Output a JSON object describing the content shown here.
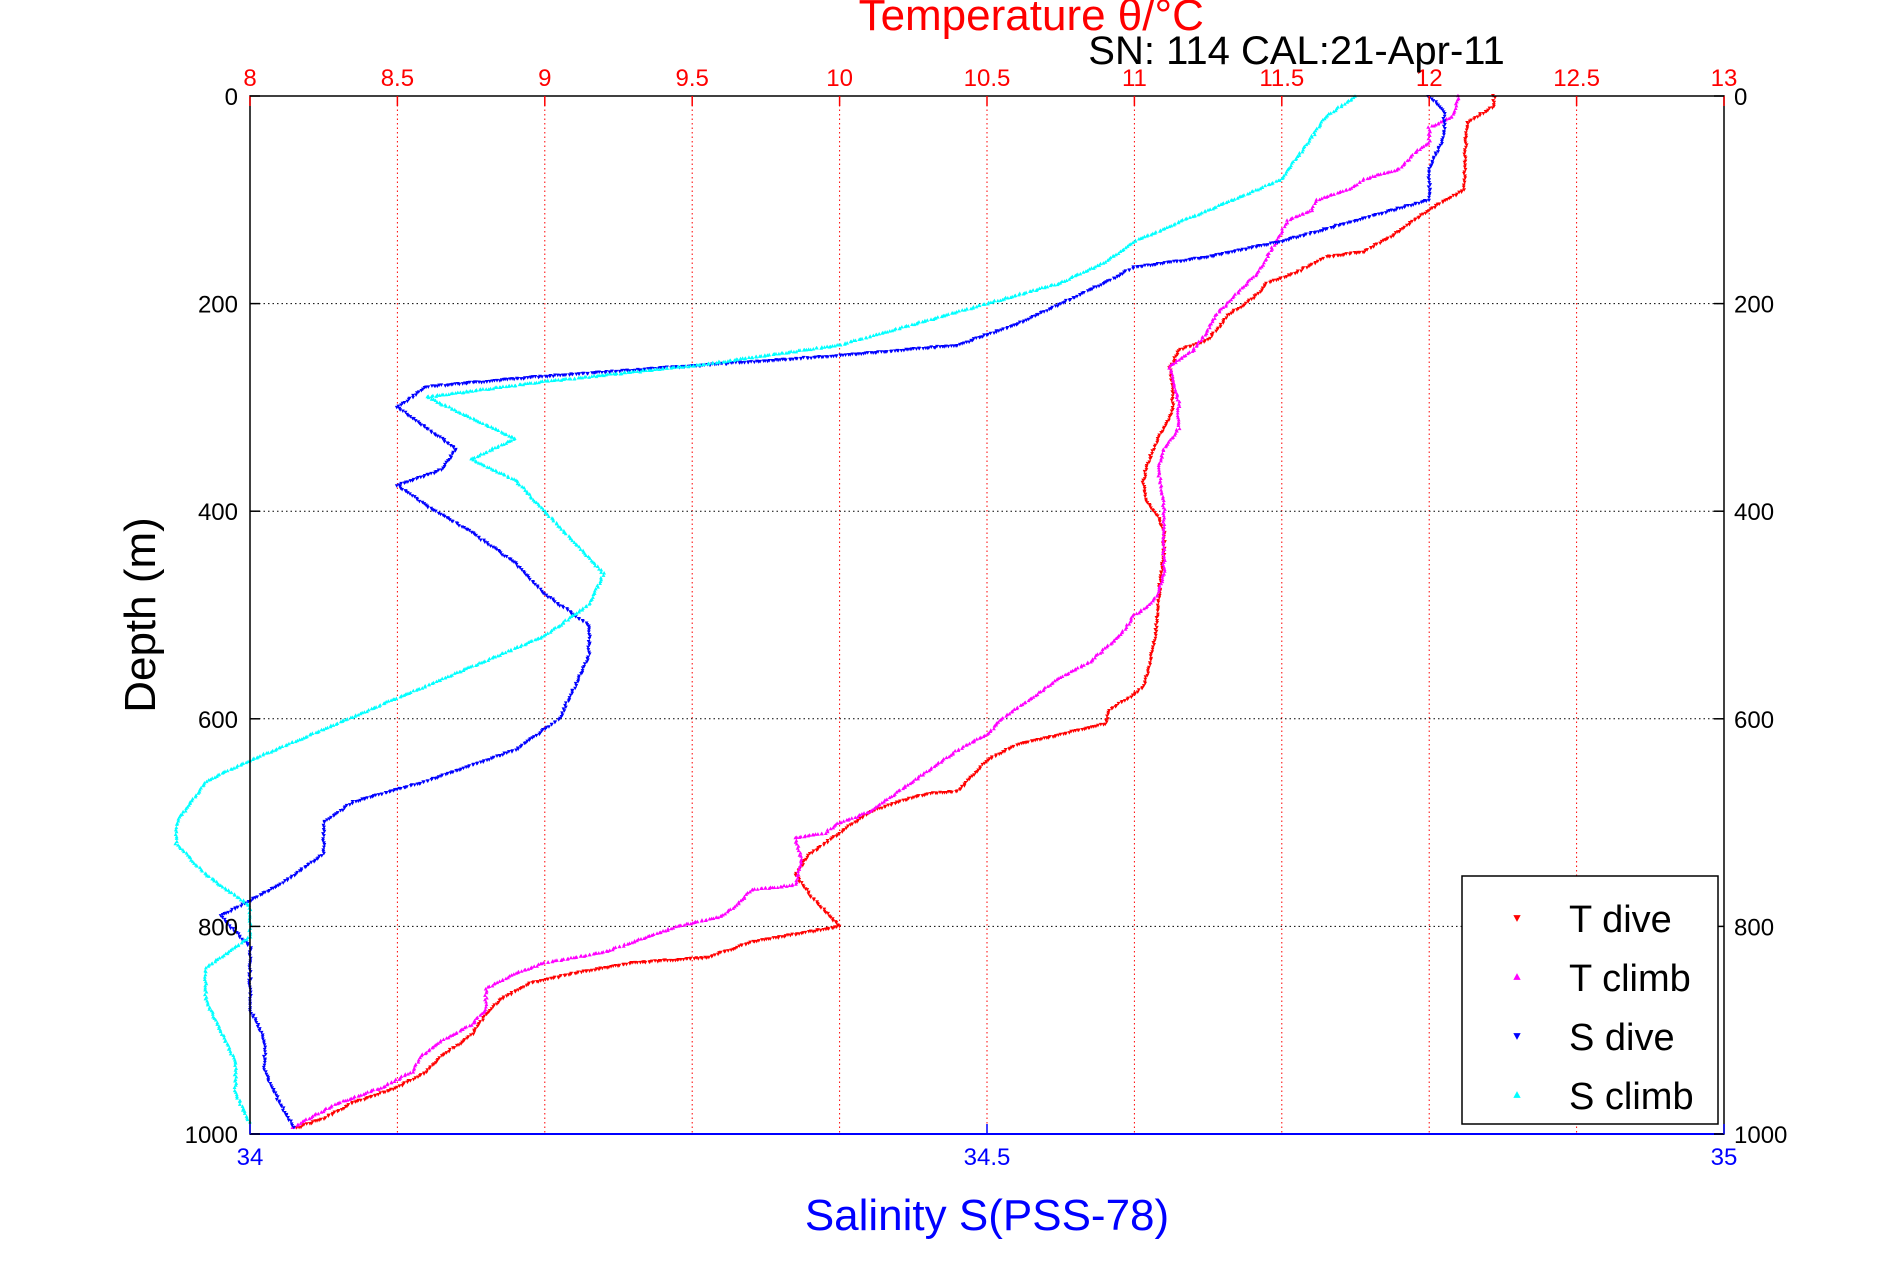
{
  "chart_data": {
    "type": "scatter",
    "title": "Temperature θ/°C",
    "subtitle": "SN: 114  CAL:21-Apr-11",
    "x_top": {
      "label": "Temperature θ/°C",
      "range": [
        8,
        13
      ],
      "ticks": [
        "8",
        "8.5",
        "9",
        "9.5",
        "10",
        "10.5",
        "11",
        "11.5",
        "12",
        "12.5",
        "13"
      ],
      "color": "#ff0000",
      "grid": true
    },
    "x_bottom": {
      "label": "Salinity S(PSS-78)",
      "range": [
        34,
        35
      ],
      "ticks": [
        "34",
        "34.5",
        "35"
      ],
      "color": "#0000ff"
    },
    "y": {
      "label": "Depth (m)",
      "range": [
        0,
        1000
      ],
      "reversed": true,
      "ticks": [
        "0",
        "200",
        "400",
        "600",
        "800",
        "1000"
      ],
      "grid": true
    },
    "legend": {
      "placement": "bottom-right",
      "entries": [
        "T dive",
        "T climb",
        "S dive",
        "S climb"
      ]
    },
    "series": [
      {
        "name": "T dive",
        "axis": "temperature",
        "color": "#ff0000",
        "points": [
          [
            12.22,
            0
          ],
          [
            12.22,
            10
          ],
          [
            12.13,
            25
          ],
          [
            12.12,
            60
          ],
          [
            12.12,
            90
          ],
          [
            12.0,
            110
          ],
          [
            11.9,
            130
          ],
          [
            11.78,
            150
          ],
          [
            11.65,
            155
          ],
          [
            11.55,
            170
          ],
          [
            11.45,
            180
          ],
          [
            11.42,
            190
          ],
          [
            11.38,
            200
          ],
          [
            11.32,
            210
          ],
          [
            11.28,
            225
          ],
          [
            11.25,
            235
          ],
          [
            11.15,
            245
          ],
          [
            11.12,
            262
          ],
          [
            11.13,
            280
          ],
          [
            11.13,
            300
          ],
          [
            11.12,
            310
          ],
          [
            11.08,
            330
          ],
          [
            11.05,
            350
          ],
          [
            11.03,
            370
          ],
          [
            11.04,
            390
          ],
          [
            11.08,
            405
          ],
          [
            11.1,
            420
          ],
          [
            11.1,
            440
          ],
          [
            11.09,
            460
          ],
          [
            11.08,
            490
          ],
          [
            11.07,
            520
          ],
          [
            11.05,
            550
          ],
          [
            11.03,
            570
          ],
          [
            10.98,
            580
          ],
          [
            10.92,
            590
          ],
          [
            10.9,
            605
          ],
          [
            10.75,
            615
          ],
          [
            10.6,
            625
          ],
          [
            10.5,
            640
          ],
          [
            10.45,
            655
          ],
          [
            10.4,
            670
          ],
          [
            10.3,
            672
          ],
          [
            10.2,
            680
          ],
          [
            10.1,
            690
          ],
          [
            10.0,
            710
          ],
          [
            9.9,
            730
          ],
          [
            9.85,
            750
          ],
          [
            9.9,
            770
          ],
          [
            9.95,
            785
          ],
          [
            10.0,
            800
          ],
          [
            9.9,
            805
          ],
          [
            9.7,
            815
          ],
          [
            9.55,
            830
          ],
          [
            9.3,
            835
          ],
          [
            9.1,
            845
          ],
          [
            8.95,
            855
          ],
          [
            8.85,
            870
          ],
          [
            8.8,
            885
          ],
          [
            8.75,
            905
          ],
          [
            8.65,
            925
          ],
          [
            8.6,
            940
          ],
          [
            8.5,
            955
          ],
          [
            8.35,
            970
          ],
          [
            8.25,
            985
          ],
          [
            8.15,
            995
          ]
        ]
      },
      {
        "name": "T climb",
        "axis": "temperature",
        "color": "#ff00ff",
        "points": [
          [
            12.1,
            0
          ],
          [
            12.08,
            20
          ],
          [
            12.0,
            30
          ],
          [
            12.0,
            45
          ],
          [
            11.95,
            55
          ],
          [
            11.9,
            70
          ],
          [
            11.78,
            80
          ],
          [
            11.73,
            90
          ],
          [
            11.62,
            100
          ],
          [
            11.6,
            110
          ],
          [
            11.52,
            120
          ],
          [
            11.5,
            130
          ],
          [
            11.48,
            140
          ],
          [
            11.45,
            155
          ],
          [
            11.42,
            170
          ],
          [
            11.35,
            190
          ],
          [
            11.28,
            210
          ],
          [
            11.25,
            225
          ],
          [
            11.2,
            245
          ],
          [
            11.12,
            260
          ],
          [
            11.13,
            275
          ],
          [
            11.15,
            295
          ],
          [
            11.15,
            320
          ],
          [
            11.1,
            340
          ],
          [
            11.08,
            360
          ],
          [
            11.1,
            390
          ],
          [
            11.1,
            430
          ],
          [
            11.1,
            460
          ],
          [
            11.08,
            480
          ],
          [
            11.05,
            490
          ],
          [
            11.0,
            500
          ],
          [
            10.95,
            520
          ],
          [
            10.85,
            545
          ],
          [
            10.75,
            560
          ],
          [
            10.65,
            580
          ],
          [
            10.55,
            600
          ],
          [
            10.5,
            615
          ],
          [
            10.4,
            630
          ],
          [
            10.3,
            650
          ],
          [
            10.2,
            670
          ],
          [
            10.1,
            690
          ],
          [
            10.0,
            700
          ],
          [
            9.95,
            710
          ],
          [
            9.85,
            715
          ],
          [
            9.87,
            735
          ],
          [
            9.85,
            760
          ],
          [
            9.7,
            765
          ],
          [
            9.65,
            780
          ],
          [
            9.6,
            790
          ],
          [
            9.45,
            800
          ],
          [
            9.3,
            815
          ],
          [
            9.2,
            825
          ],
          [
            9.0,
            835
          ],
          [
            8.9,
            845
          ],
          [
            8.8,
            860
          ],
          [
            8.8,
            880
          ],
          [
            8.75,
            895
          ],
          [
            8.65,
            910
          ],
          [
            8.58,
            925
          ],
          [
            8.55,
            940
          ],
          [
            8.45,
            955
          ],
          [
            8.3,
            970
          ],
          [
            8.2,
            985
          ],
          [
            8.14,
            995
          ]
        ]
      },
      {
        "name": "S dive",
        "axis": "salinity",
        "color": "#0000ff",
        "points": [
          [
            34.8,
            0
          ],
          [
            34.81,
            15
          ],
          [
            34.81,
            40
          ],
          [
            34.8,
            70
          ],
          [
            34.8,
            100
          ],
          [
            34.75,
            120
          ],
          [
            34.7,
            140
          ],
          [
            34.65,
            155
          ],
          [
            34.6,
            165
          ],
          [
            34.58,
            180
          ],
          [
            34.55,
            200
          ],
          [
            34.52,
            220
          ],
          [
            34.48,
            240
          ],
          [
            34.4,
            250
          ],
          [
            34.3,
            260
          ],
          [
            34.2,
            270
          ],
          [
            34.12,
            280
          ],
          [
            34.1,
            300
          ],
          [
            34.12,
            320
          ],
          [
            34.14,
            340
          ],
          [
            34.13,
            360
          ],
          [
            34.1,
            375
          ],
          [
            34.12,
            395
          ],
          [
            34.15,
            420
          ],
          [
            34.18,
            450
          ],
          [
            34.2,
            480
          ],
          [
            34.23,
            510
          ],
          [
            34.23,
            540
          ],
          [
            34.22,
            570
          ],
          [
            34.21,
            600
          ],
          [
            34.18,
            630
          ],
          [
            34.12,
            660
          ],
          [
            34.07,
            680
          ],
          [
            34.05,
            700
          ],
          [
            34.05,
            730
          ],
          [
            34.02,
            760
          ],
          [
            33.98,
            790
          ],
          [
            34.0,
            820
          ],
          [
            34.0,
            850
          ],
          [
            34.0,
            880
          ],
          [
            34.01,
            910
          ],
          [
            34.01,
            940
          ],
          [
            34.02,
            970
          ],
          [
            34.03,
            995
          ]
        ]
      },
      {
        "name": "S climb",
        "axis": "salinity",
        "color": "#00ffff",
        "points": [
          [
            34.75,
            0
          ],
          [
            34.73,
            20
          ],
          [
            34.72,
            40
          ],
          [
            34.71,
            60
          ],
          [
            34.7,
            80
          ],
          [
            34.65,
            110
          ],
          [
            34.6,
            140
          ],
          [
            34.58,
            160
          ],
          [
            34.55,
            180
          ],
          [
            34.5,
            200
          ],
          [
            34.45,
            220
          ],
          [
            34.4,
            240
          ],
          [
            34.3,
            260
          ],
          [
            34.2,
            275
          ],
          [
            34.12,
            290
          ],
          [
            34.15,
            310
          ],
          [
            34.18,
            330
          ],
          [
            34.15,
            350
          ],
          [
            34.18,
            370
          ],
          [
            34.2,
            400
          ],
          [
            34.22,
            430
          ],
          [
            34.24,
            460
          ],
          [
            34.23,
            490
          ],
          [
            34.2,
            520
          ],
          [
            34.15,
            550
          ],
          [
            34.1,
            580
          ],
          [
            34.05,
            610
          ],
          [
            34.0,
            640
          ],
          [
            33.97,
            660
          ],
          [
            33.96,
            680
          ],
          [
            33.95,
            700
          ],
          [
            33.95,
            720
          ],
          [
            33.97,
            750
          ],
          [
            34.0,
            780
          ],
          [
            34.0,
            810
          ],
          [
            33.97,
            840
          ],
          [
            33.97,
            870
          ],
          [
            33.98,
            900
          ],
          [
            33.99,
            930
          ],
          [
            33.99,
            960
          ],
          [
            34.0,
            990
          ]
        ]
      }
    ]
  }
}
